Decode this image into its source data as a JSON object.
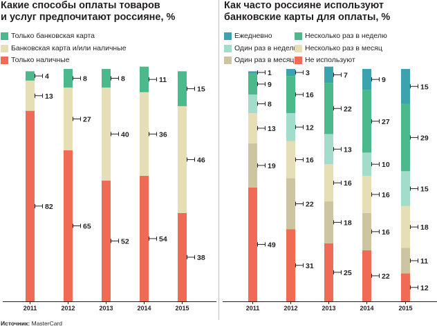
{
  "source": {
    "label": "Источник:",
    "name": "MasterCard"
  },
  "chart_data": [
    {
      "type": "bar",
      "stacked": true,
      "title": [
        "Какие способы оплаты товаров",
        "и услуг предпочитают россияне, %"
      ],
      "categories": [
        "2011",
        "2012",
        "2013",
        "2014",
        "2015"
      ],
      "series": [
        {
          "name": "Только наличные",
          "color": "#ef6b55",
          "values": [
            82,
            65,
            52,
            54,
            38
          ]
        },
        {
          "name": "Банковская карта и/или наличные",
          "color": "#e6dfb5",
          "values": [
            13,
            27,
            40,
            36,
            46
          ]
        },
        {
          "name": "Только банковская карта",
          "color": "#4cb98c",
          "values": [
            4,
            8,
            8,
            11,
            15
          ]
        }
      ],
      "legend_order": [
        2,
        1,
        0
      ],
      "ylim": [
        0,
        100
      ],
      "legend": "top-left"
    },
    {
      "type": "bar",
      "stacked": true,
      "title": [
        "Как часто россияне используют",
        "банковские карты для оплаты, %"
      ],
      "categories": [
        "2011",
        "2012",
        "2013",
        "2014",
        "2015"
      ],
      "series": [
        {
          "name": "Не используют",
          "color": "#ef6b55",
          "values": [
            49,
            31,
            25,
            22,
            12
          ]
        },
        {
          "name": "Один раз в месяц",
          "color": "#cdc5a2",
          "values": [
            19,
            22,
            18,
            16,
            11
          ]
        },
        {
          "name": "Несколько раз в месяц",
          "color": "#e6dfb5",
          "values": [
            13,
            16,
            16,
            16,
            18
          ]
        },
        {
          "name": "Один раз в неделю",
          "color": "#a4dccb",
          "values": [
            8,
            12,
            13,
            10,
            15
          ]
        },
        {
          "name": "Несколько раз в неделю",
          "color": "#4cb98c",
          "values": [
            9,
            16,
            22,
            27,
            29
          ]
        },
        {
          "name": "Ежедневно",
          "color": "#3ca2ad",
          "values": [
            1,
            3,
            7,
            9,
            15
          ]
        }
      ],
      "legend_order": [
        5,
        4,
        3,
        2,
        1,
        0
      ],
      "ylim": [
        0,
        100
      ],
      "legend": "top-left"
    }
  ]
}
